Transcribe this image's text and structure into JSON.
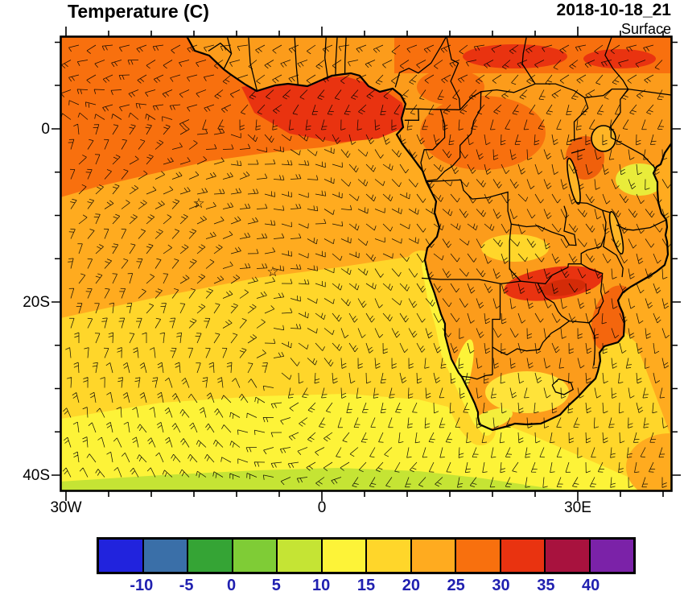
{
  "header": {
    "title": "Temperature (C)",
    "datetime": "2018-10-18_21",
    "level": "Surface"
  },
  "axes": {
    "lat_ticks": [
      "0",
      "20S",
      "40S"
    ],
    "lon_ticks": [
      "30W",
      "0",
      "30E"
    ]
  },
  "colorbar": {
    "tick_labels": [
      "-10",
      "-5",
      "0",
      "5",
      "10",
      "15",
      "20",
      "25",
      "30",
      "35",
      "40"
    ],
    "colors": [
      "#2123dd",
      "#3a6fa8",
      "#35a435",
      "#7fcc36",
      "#c5e434",
      "#fdf338",
      "#ffd62a",
      "#ffab1f",
      "#f8700e",
      "#e93310",
      "#a8123e",
      "#7b22a8"
    ],
    "label_color": "#2020b0"
  },
  "map": {
    "markers": [
      {
        "name": "island-marker-1",
        "symbol": "☆"
      },
      {
        "name": "island-marker-2",
        "symbol": "☆"
      }
    ]
  },
  "chart_data": {
    "type": "heatmap",
    "title": "Temperature (C)",
    "level": "Surface",
    "valid_time": "2018-10-18_21",
    "units": "C",
    "colorbar_values": [
      -10,
      -5,
      0,
      5,
      10,
      15,
      20,
      25,
      30,
      35,
      40
    ],
    "x_tick_labels": [
      "30W",
      "0",
      "30E"
    ],
    "y_tick_labels": [
      "0",
      "20S",
      "40S"
    ],
    "overlays": [
      "wind barbs",
      "coastlines",
      "country borders",
      "lakes"
    ],
    "legend_position": "bottom"
  }
}
